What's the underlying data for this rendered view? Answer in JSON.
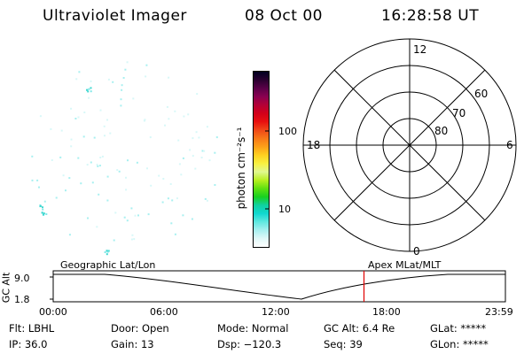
{
  "header": {
    "instrument": "Ultraviolet Imager",
    "date": "08 Oct 00",
    "time": "16:28:58 UT"
  },
  "colorbar": {
    "unit_label": "photon cm⁻²s⁻¹",
    "ticks": [
      {
        "label": "100",
        "value": 100
      },
      {
        "label": "10",
        "value": 10
      }
    ],
    "colors": [
      "#000020",
      "#2a0030",
      "#5a0048",
      "#8a0050",
      "#b40036",
      "#d2001a",
      "#e81010",
      "#f04818",
      "#f87818",
      "#fca018",
      "#ffd020",
      "#f8f040",
      "#e0f890",
      "#b8f020",
      "#60e010",
      "#18d020",
      "#10d0a0",
      "#10d8d0",
      "#60e8e0",
      "#a8f0f0",
      "#e0f8f8",
      "#ffffff"
    ]
  },
  "polar": {
    "mlt_labels": {
      "top": "12",
      "left": "18",
      "right": "6",
      "bottom": "0"
    },
    "lat_labels": [
      "60",
      "70",
      "80"
    ]
  },
  "timeline": {
    "left_label": "Geographic Lat/Lon",
    "right_label": "Apex MLat/MLT",
    "axis_title": "GC Alt",
    "y_ticks": [
      "9.0",
      "1.8"
    ],
    "x_ticks": [
      "00:00",
      "06:00",
      "12:00",
      "18:00",
      "23:59"
    ],
    "marker_time": "16:28:58",
    "marker_color": "#e00000"
  },
  "info": {
    "filter": "Flt: LBHL",
    "ip": "IP: 36.0",
    "door": "Door: Open",
    "gain": "Gain: 13",
    "mode": "Mode: Normal",
    "dsp": "Dsp: −120.3",
    "gc_alt": "GC Alt: 6.4 Re",
    "seq": "Seq: 39",
    "glat": "GLat: *****",
    "glon": "GLon: *****"
  }
}
